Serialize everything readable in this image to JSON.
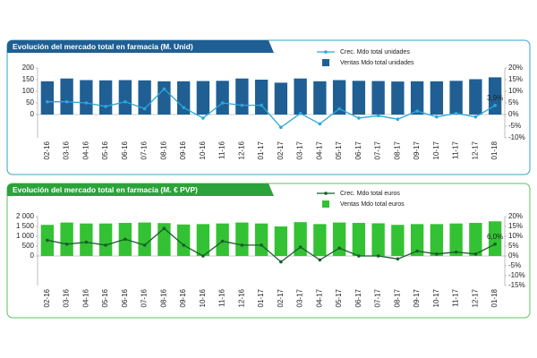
{
  "chart_data": [
    {
      "type": "bar",
      "title": "Evolución del mercado total en farmacia (M. Unid)",
      "categories": [
        "02-16",
        "03-16",
        "04-16",
        "05-16",
        "06-16",
        "07-16",
        "08-16",
        "09-16",
        "10-16",
        "11-16",
        "12-16",
        "01-17",
        "02-17",
        "03-17",
        "04-17",
        "05-17",
        "06-17",
        "07-17",
        "08-17",
        "09-17",
        "10-17",
        "11-17",
        "12-17",
        "01-18"
      ],
      "series": [
        {
          "name": "Ventas Mdo total unidades",
          "type": "bar",
          "color": "#1f5f94",
          "values": [
            143,
            155,
            148,
            147,
            148,
            147,
            143,
            143,
            144,
            145,
            155,
            150,
            137,
            155,
            143,
            148,
            145,
            144,
            142,
            143,
            143,
            145,
            152,
            160
          ]
        },
        {
          "name": "Crec. Mdo total unidades",
          "type": "line",
          "axis": "y2",
          "color": "#2aa8d8",
          "values": [
            5.5,
            5.5,
            5,
            3.5,
            5.5,
            2.5,
            11,
            3,
            -1.5,
            5,
            4,
            4,
            -5.5,
            0.5,
            -4,
            2.5,
            -1.5,
            -0.5,
            -2,
            1.5,
            -1,
            0.5,
            -1,
            3.9
          ],
          "value_labels": [
            null,
            null,
            null,
            null,
            null,
            null,
            null,
            null,
            null,
            null,
            null,
            null,
            null,
            null,
            null,
            null,
            null,
            null,
            null,
            null,
            null,
            null,
            null,
            "3,9%"
          ]
        }
      ],
      "ylim": [
        -100,
        200
      ],
      "yticks": [
        0,
        50,
        100,
        150,
        200
      ],
      "y2lim": [
        -10,
        20
      ],
      "y2ticks": [
        {
          "value": -10,
          "label": "-10%"
        },
        {
          "value": -5,
          "label": "-5%"
        },
        {
          "value": 0,
          "label": "0%"
        },
        {
          "value": 5,
          "label": "5%"
        },
        {
          "value": 10,
          "label": "10%"
        },
        {
          "value": 15,
          "label": "15%"
        },
        {
          "value": 20,
          "label": "20%"
        }
      ],
      "color": "#1f5f94",
      "border_color": "#3aa0c8",
      "grid": false
    },
    {
      "type": "bar",
      "title": "Evolución del mercado total en farmacia (M. € PVP)",
      "categories": [
        "02-16",
        "03-16",
        "04-16",
        "05-16",
        "06-16",
        "07-16",
        "08-16",
        "09-16",
        "10-16",
        "11-16",
        "12-16",
        "01-17",
        "02-17",
        "03-17",
        "04-17",
        "05-17",
        "06-17",
        "07-17",
        "08-17",
        "09-17",
        "10-17",
        "11-17",
        "12-17",
        "01-18"
      ],
      "series": [
        {
          "name": "Ventas Mdo total euros",
          "type": "bar",
          "color": "#33c233",
          "values": [
            1580,
            1700,
            1650,
            1650,
            1680,
            1700,
            1670,
            1600,
            1620,
            1650,
            1700,
            1650,
            1500,
            1720,
            1620,
            1700,
            1680,
            1660,
            1580,
            1620,
            1620,
            1650,
            1680,
            1760
          ]
        },
        {
          "name": "Crec. Mdo total euros",
          "type": "line",
          "axis": "y2",
          "color": "#1a5c2a",
          "values": [
            8,
            6,
            7,
            5.5,
            8.5,
            5.5,
            14,
            5.5,
            0,
            7.5,
            5.5,
            5.5,
            -3,
            4.5,
            -2,
            4,
            0,
            0,
            -1.5,
            2.5,
            1,
            2,
            1,
            6.0
          ],
          "value_labels": [
            null,
            null,
            null,
            null,
            null,
            null,
            null,
            null,
            null,
            null,
            null,
            null,
            null,
            null,
            null,
            null,
            null,
            null,
            null,
            null,
            null,
            null,
            null,
            "6,0%"
          ]
        }
      ],
      "ylim": [
        -1500,
        2000
      ],
      "yticks": [
        0,
        500,
        {
          "value": 1000,
          "label": "1 000"
        },
        {
          "value": 1500,
          "label": "1 500"
        },
        {
          "value": 2000,
          "label": "2 000"
        }
      ],
      "y2lim": [
        -15,
        20
      ],
      "y2ticks": [
        {
          "value": -15,
          "label": "-15%"
        },
        {
          "value": -10,
          "label": "-10%"
        },
        {
          "value": -5,
          "label": "-5%"
        },
        {
          "value": 0,
          "label": "0%"
        },
        {
          "value": 5,
          "label": "5%"
        },
        {
          "value": 10,
          "label": "10%"
        },
        {
          "value": 15,
          "label": "15%"
        },
        {
          "value": 20,
          "label": "20%"
        }
      ],
      "color": "#2ba33a",
      "border_color": "#5cc35c",
      "grid": false
    }
  ]
}
